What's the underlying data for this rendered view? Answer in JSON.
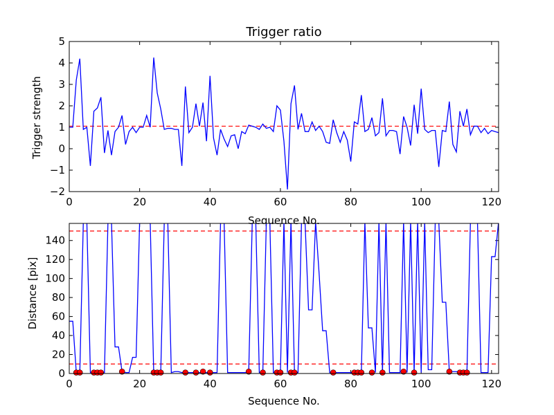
{
  "chart_data": [
    {
      "type": "line",
      "title": "Trigger ratio",
      "xlabel": "Sequence No.",
      "ylabel": "Trigger strength",
      "xlim": [
        0,
        122
      ],
      "ylim": [
        -2,
        5
      ],
      "xticks": [
        "0",
        "20",
        "40",
        "60",
        "80",
        "100",
        "120"
      ],
      "yticks": [
        "−2",
        "−1",
        "0",
        "1",
        "2",
        "3",
        "4",
        "5"
      ],
      "line_color": "#0000ff",
      "threshold_color": "#ff0000",
      "thresholds": [
        1.05
      ],
      "grid": false,
      "series": [
        {
          "x": [
            0,
            1,
            2,
            3,
            4,
            5,
            6,
            7,
            8,
            9,
            10,
            11,
            12,
            13,
            14,
            15,
            16,
            17,
            18,
            19,
            20,
            21,
            22,
            23,
            24,
            25,
            26,
            27,
            28,
            29,
            30,
            31,
            32,
            33,
            34,
            35,
            36,
            37,
            38,
            39,
            40,
            41,
            42,
            43,
            44,
            45,
            46,
            47,
            48,
            49,
            50,
            51,
            52,
            53,
            54,
            55,
            56,
            57,
            58,
            59,
            60,
            61,
            62,
            63,
            64,
            65,
            66,
            67,
            68,
            69,
            70,
            71,
            72,
            73,
            74,
            75,
            76,
            77,
            78,
            79,
            80,
            81,
            82,
            83,
            84,
            85,
            86,
            87,
            88,
            89,
            90,
            91,
            92,
            93,
            94,
            95,
            96,
            97,
            98,
            99,
            100,
            101,
            102,
            103,
            104,
            105,
            106,
            107,
            108,
            109,
            110,
            111,
            112,
            113,
            114,
            115,
            116,
            117,
            118,
            119,
            120,
            121,
            122
          ],
          "y": [
            1.0,
            1.0,
            3.2,
            4.2,
            0.9,
            1.0,
            -0.8,
            1.75,
            1.9,
            2.4,
            -0.2,
            0.85,
            -0.3,
            0.8,
            1.0,
            1.55,
            0.2,
            0.8,
            1.0,
            0.75,
            1.0,
            1.0,
            1.55,
            1.0,
            4.25,
            2.6,
            1.85,
            0.9,
            0.95,
            0.95,
            0.9,
            0.9,
            -0.8,
            2.9,
            0.75,
            1.0,
            2.1,
            1.05,
            2.15,
            0.35,
            3.4,
            0.5,
            -0.3,
            0.9,
            0.45,
            0.1,
            0.6,
            0.65,
            0.0,
            0.8,
            0.7,
            1.1,
            1.05,
            1.0,
            0.9,
            1.15,
            0.95,
            1.0,
            0.8,
            2.0,
            1.8,
            0.35,
            -1.9,
            2.1,
            2.95,
            0.9,
            1.65,
            0.8,
            0.8,
            1.25,
            0.85,
            1.05,
            0.8,
            0.3,
            0.25,
            1.35,
            0.75,
            0.3,
            0.8,
            0.4,
            -0.6,
            1.25,
            1.15,
            2.5,
            0.8,
            0.9,
            1.45,
            0.6,
            0.75,
            2.35,
            0.6,
            0.85,
            0.85,
            0.8,
            -0.25,
            1.5,
            1.0,
            0.15,
            2.05,
            0.7,
            2.8,
            0.9,
            0.75,
            0.85,
            0.85,
            -0.85,
            0.85,
            0.8,
            2.2,
            0.2,
            -0.15,
            1.75,
            1.05,
            1.85,
            0.65,
            1.05,
            1.05,
            0.75,
            0.95,
            0.7,
            0.85,
            0.8,
            0.75
          ]
        }
      ]
    },
    {
      "type": "line",
      "xlabel": "Sequence No.",
      "ylabel": "Distance [pix]",
      "xlim": [
        0,
        122
      ],
      "ylim": [
        0,
        158
      ],
      "xticks": [
        "0",
        "20",
        "40",
        "60",
        "80",
        "100",
        "120"
      ],
      "yticks": [
        "0",
        "20",
        "40",
        "60",
        "80",
        "100",
        "120",
        "140"
      ],
      "line_color": "#0000ff",
      "threshold_color": "#ff0000",
      "marker_color": "#ff0000",
      "thresholds": [
        10,
        150
      ],
      "grid": false,
      "series": [
        {
          "x": [
            0,
            1,
            2,
            3,
            4,
            5,
            6,
            7,
            8,
            9,
            10,
            11,
            12,
            13,
            14,
            15,
            16,
            17,
            18,
            19,
            20,
            21,
            22,
            23,
            24,
            25,
            26,
            27,
            28,
            29,
            30,
            31,
            32,
            33,
            34,
            35,
            36,
            37,
            38,
            39,
            40,
            41,
            42,
            43,
            44,
            45,
            46,
            47,
            48,
            49,
            50,
            51,
            52,
            53,
            54,
            55,
            56,
            57,
            58,
            59,
            60,
            61,
            62,
            63,
            64,
            65,
            66,
            67,
            68,
            69,
            70,
            71,
            72,
            73,
            74,
            75,
            76,
            77,
            78,
            79,
            80,
            81,
            82,
            83,
            84,
            85,
            86,
            87,
            88,
            89,
            90,
            91,
            92,
            93,
            94,
            95,
            96,
            97,
            98,
            99,
            100,
            101,
            102,
            103,
            104,
            105,
            106,
            107,
            108,
            109,
            110,
            111,
            112,
            113,
            114,
            115,
            116,
            117,
            118,
            119,
            120,
            121,
            122
          ],
          "y": [
            55,
            55,
            1,
            1,
            160,
            160,
            1,
            1,
            1,
            1,
            1,
            160,
            160,
            28,
            28,
            2,
            1,
            1,
            17,
            17,
            160,
            160,
            160,
            160,
            1,
            1,
            1,
            160,
            160,
            1,
            2,
            2,
            1,
            1,
            1,
            1,
            1,
            1,
            1,
            1,
            1,
            1,
            1,
            160,
            160,
            1,
            1,
            1,
            1,
            1,
            1,
            2,
            160,
            160,
            1,
            1,
            160,
            160,
            1,
            1,
            1,
            160,
            1,
            160,
            1,
            1,
            160,
            160,
            67,
            67,
            160,
            105,
            45,
            45,
            1,
            1,
            1,
            1,
            1,
            1,
            1,
            1,
            1,
            1,
            160,
            48,
            48,
            1,
            160,
            1,
            160,
            1,
            1,
            1,
            1,
            160,
            1,
            160,
            1,
            160,
            1,
            160,
            4,
            4,
            160,
            160,
            75,
            75,
            2,
            2,
            2,
            1,
            1,
            1,
            160,
            160,
            160,
            1,
            1,
            1,
            123,
            123,
            160
          ]
        }
      ],
      "markers": {
        "x": [
          2,
          3,
          7,
          8,
          9,
          15,
          24,
          25,
          26,
          33,
          36,
          38,
          40,
          51,
          55,
          59,
          60,
          63,
          64,
          75,
          81,
          82,
          83,
          86,
          89,
          95,
          98,
          108,
          111,
          112,
          113
        ],
        "y": [
          1,
          1,
          1,
          1,
          1,
          2,
          1,
          1,
          1,
          1,
          1,
          2,
          1,
          2,
          1,
          1,
          1,
          1,
          1,
          1,
          1,
          1,
          1,
          1,
          1,
          2,
          1,
          2,
          1,
          1,
          1
        ]
      }
    }
  ]
}
